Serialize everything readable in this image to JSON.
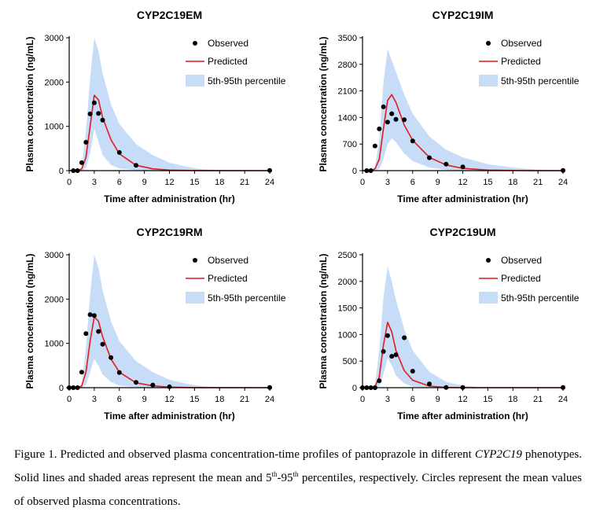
{
  "chart_data": [
    {
      "type": "line",
      "title": "CYP2C19EM",
      "xlabel": "Time after administration (hr)",
      "ylabel": "Plasma concentration (ng/mL)",
      "xlim": [
        0,
        24
      ],
      "ylim": [
        0,
        3000
      ],
      "xticks": [
        0,
        3,
        6,
        9,
        12,
        15,
        18,
        21,
        24
      ],
      "yticks": [
        0,
        1000,
        2000,
        3000
      ],
      "legend_position": "top-right",
      "legend": [
        "Observed",
        "Predicted",
        "5th-95th percentile"
      ],
      "series": [
        {
          "name": "Observed",
          "kind": "scatter",
          "x": [
            0.5,
            1,
            1.5,
            2,
            2.5,
            3,
            3.5,
            4,
            6,
            8,
            24
          ],
          "y": [
            0,
            0,
            180,
            640,
            1280,
            1530,
            1290,
            1140,
            410,
            120,
            5
          ]
        },
        {
          "name": "Predicted",
          "kind": "line",
          "x": [
            0,
            1,
            1.5,
            2,
            2.5,
            3,
            3.5,
            4,
            5,
            6,
            8,
            10,
            12,
            15,
            24
          ],
          "y": [
            0,
            0,
            40,
            300,
            1000,
            1700,
            1600,
            1200,
            700,
            380,
            120,
            40,
            12,
            2,
            0
          ]
        },
        {
          "name": "5th-95th percentile",
          "kind": "band",
          "x": [
            0,
            1,
            1.5,
            2,
            2.5,
            3,
            3.5,
            4,
            5,
            6,
            8,
            10,
            12,
            14,
            16,
            20,
            24
          ],
          "upper": [
            0,
            0,
            50,
            900,
            2100,
            3000,
            2700,
            2200,
            1500,
            1050,
            600,
            350,
            180,
            90,
            30,
            0,
            0
          ],
          "lower": [
            0,
            0,
            0,
            60,
            400,
            950,
            650,
            350,
            130,
            50,
            10,
            0,
            0,
            0,
            0,
            0,
            0
          ]
        }
      ]
    },
    {
      "type": "line",
      "title": "CYP2C19IM",
      "xlabel": "Time after administration (hr)",
      "ylabel": "Plasma concentration (ng/mL)",
      "xlim": [
        0,
        24
      ],
      "ylim": [
        0,
        3500
      ],
      "xticks": [
        0,
        3,
        6,
        9,
        12,
        15,
        18,
        21,
        24
      ],
      "yticks": [
        0,
        700,
        1400,
        2100,
        2800,
        3500
      ],
      "legend_position": "top-right",
      "legend": [
        "Observed",
        "Predicted",
        "5th-95th percentile"
      ],
      "series": [
        {
          "name": "Observed",
          "kind": "scatter",
          "x": [
            0.5,
            1,
            1.5,
            2,
            2.5,
            3,
            3.5,
            4,
            5,
            6,
            8,
            10,
            12,
            24
          ],
          "y": [
            0,
            0,
            650,
            1100,
            1680,
            1280,
            1500,
            1350,
            1340,
            780,
            340,
            170,
            100,
            5
          ]
        },
        {
          "name": "Predicted",
          "kind": "line",
          "x": [
            0,
            1,
            1.5,
            2,
            2.5,
            3,
            3.5,
            4,
            5,
            6,
            8,
            10,
            12,
            15,
            20,
            24
          ],
          "y": [
            0,
            0,
            50,
            300,
            1100,
            1850,
            2000,
            1800,
            1200,
            800,
            350,
            150,
            60,
            15,
            0,
            0
          ]
        },
        {
          "name": "5th-95th percentile",
          "kind": "band",
          "x": [
            0,
            1,
            1.5,
            2,
            2.5,
            3,
            3.5,
            4,
            5,
            6,
            8,
            10,
            12,
            15,
            18,
            21,
            24
          ],
          "upper": [
            0,
            0,
            100,
            800,
            2300,
            3200,
            2900,
            2600,
            2000,
            1500,
            900,
            550,
            350,
            170,
            80,
            30,
            10
          ],
          "lower": [
            0,
            0,
            0,
            50,
            300,
            700,
            850,
            750,
            450,
            250,
            80,
            20,
            0,
            0,
            0,
            0,
            0
          ]
        }
      ]
    },
    {
      "type": "line",
      "title": "CYP2C19RM",
      "xlabel": "Time after administration (hr)",
      "ylabel": "Plasma concentration (ng/mL)",
      "xlim": [
        0,
        24
      ],
      "ylim": [
        0,
        3000
      ],
      "xticks": [
        0,
        3,
        6,
        9,
        12,
        15,
        18,
        21,
        24
      ],
      "yticks": [
        0,
        1000,
        2000,
        3000
      ],
      "legend_position": "top-right",
      "legend": [
        "Observed",
        "Predicted",
        "5th-95th percentile"
      ],
      "series": [
        {
          "name": "Observed",
          "kind": "scatter",
          "x": [
            0,
            0.5,
            1,
            1.5,
            2,
            2.5,
            3,
            3.5,
            4,
            5,
            6,
            8,
            10,
            12,
            24
          ],
          "y": [
            0,
            0,
            0,
            350,
            1220,
            1650,
            1630,
            1270,
            980,
            680,
            340,
            120,
            60,
            20,
            5
          ]
        },
        {
          "name": "Predicted",
          "kind": "line",
          "x": [
            0,
            1,
            1.5,
            2,
            2.5,
            3,
            3.5,
            4,
            5,
            6,
            8,
            10,
            12,
            15,
            24
          ],
          "y": [
            0,
            0,
            40,
            350,
            1050,
            1600,
            1500,
            1150,
            650,
            350,
            110,
            40,
            12,
            2,
            0
          ]
        },
        {
          "name": "5th-95th percentile",
          "kind": "band",
          "x": [
            0,
            1,
            1.5,
            2,
            2.5,
            3,
            3.5,
            4,
            5,
            6,
            8,
            10,
            12,
            14,
            16,
            20,
            24
          ],
          "upper": [
            0,
            0,
            50,
            900,
            2100,
            3000,
            2700,
            2200,
            1500,
            1050,
            600,
            350,
            180,
            90,
            30,
            0,
            0
          ],
          "lower": [
            0,
            0,
            0,
            60,
            350,
            650,
            500,
            300,
            130,
            50,
            10,
            0,
            0,
            0,
            0,
            0,
            0
          ]
        }
      ]
    },
    {
      "type": "line",
      "title": "CYP2C19UM",
      "xlabel": "Time after administration (hr)",
      "ylabel": "Plasma concentration (ng/mL)",
      "xlim": [
        0,
        24
      ],
      "ylim": [
        0,
        2500
      ],
      "xticks": [
        0,
        3,
        6,
        9,
        12,
        15,
        18,
        21,
        24
      ],
      "yticks": [
        0,
        500,
        1000,
        1500,
        2000,
        2500
      ],
      "legend_position": "top-right",
      "legend": [
        "Observed",
        "Predicted",
        "5th-95th percentile"
      ],
      "series": [
        {
          "name": "Observed",
          "kind": "scatter",
          "x": [
            0,
            0.5,
            1,
            1.5,
            2,
            2.5,
            3,
            3.5,
            4,
            5,
            6,
            8,
            10,
            12,
            24
          ],
          "y": [
            0,
            0,
            0,
            0,
            130,
            680,
            980,
            590,
            620,
            940,
            310,
            70,
            5,
            5,
            5
          ]
        },
        {
          "name": "Predicted",
          "kind": "line",
          "x": [
            0,
            1,
            1.5,
            2,
            2.5,
            3,
            3.5,
            4,
            5,
            6,
            8,
            10,
            12,
            15,
            24
          ],
          "y": [
            0,
            0,
            20,
            200,
            800,
            1230,
            1050,
            700,
            320,
            140,
            30,
            5,
            0,
            0,
            0
          ]
        },
        {
          "name": "5th-95th percentile",
          "kind": "band",
          "x": [
            0,
            1,
            1.5,
            2,
            2.5,
            3,
            3.5,
            4,
            5,
            6,
            8,
            10,
            12,
            14,
            16,
            24
          ],
          "upper": [
            0,
            0,
            60,
            700,
            1700,
            2280,
            2000,
            1650,
            1100,
            700,
            300,
            110,
            40,
            10,
            0,
            0
          ],
          "lower": [
            0,
            0,
            0,
            30,
            250,
            550,
            420,
            230,
            80,
            20,
            0,
            0,
            0,
            0,
            0,
            0
          ]
        }
      ]
    }
  ],
  "colors": {
    "observed": "#000000",
    "predicted": "#e41a1c",
    "band": "#c6dcf7",
    "axis": "#000000"
  },
  "caption": {
    "figure_label": "Figure 1.",
    "text_part1": " Predicted and observed plasma concentration-time profiles of pantoprazole in different ",
    "gene": "CYP2C19",
    "text_part2": " phenotypes. Solid lines and shaded areas represent the mean and 5",
    "sup1": "th",
    "text_part3": "-95",
    "sup2": "th",
    "text_part4": " percentiles, respectively. Circles represent the mean values of observed plasma concentrations."
  }
}
